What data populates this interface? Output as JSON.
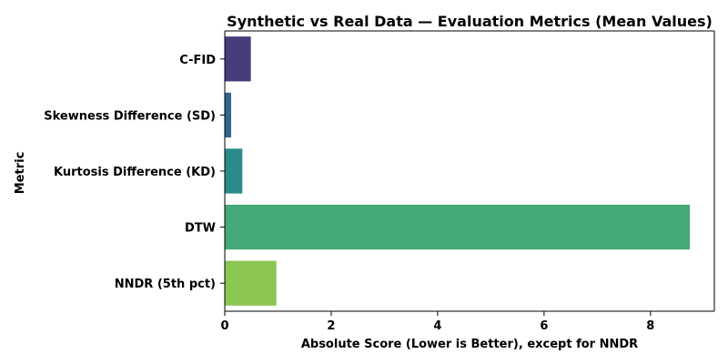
{
  "chart_data": {
    "type": "bar",
    "orientation": "horizontal",
    "title": "Synthetic vs Real Data — Evaluation Metrics (Mean Values)",
    "xlabel": "Absolute Score (Lower is Better), except for NNDR",
    "ylabel": "Metric",
    "categories": [
      "C-FID",
      "Skewness Difference (SD)",
      "Kurtosis Difference (KD)",
      "DTW",
      "NNDR (5th pct)"
    ],
    "values": [
      0.49,
      0.12,
      0.33,
      8.74,
      0.97
    ],
    "colors": [
      "#473d7b",
      "#30688e",
      "#2a8a8c",
      "#45a978",
      "#8cc653"
    ],
    "xlim": [
      0,
      9.2
    ],
    "xticks": [
      "0",
      "2",
      "4",
      "6",
      "8"
    ],
    "grid": false,
    "legend": "none"
  }
}
